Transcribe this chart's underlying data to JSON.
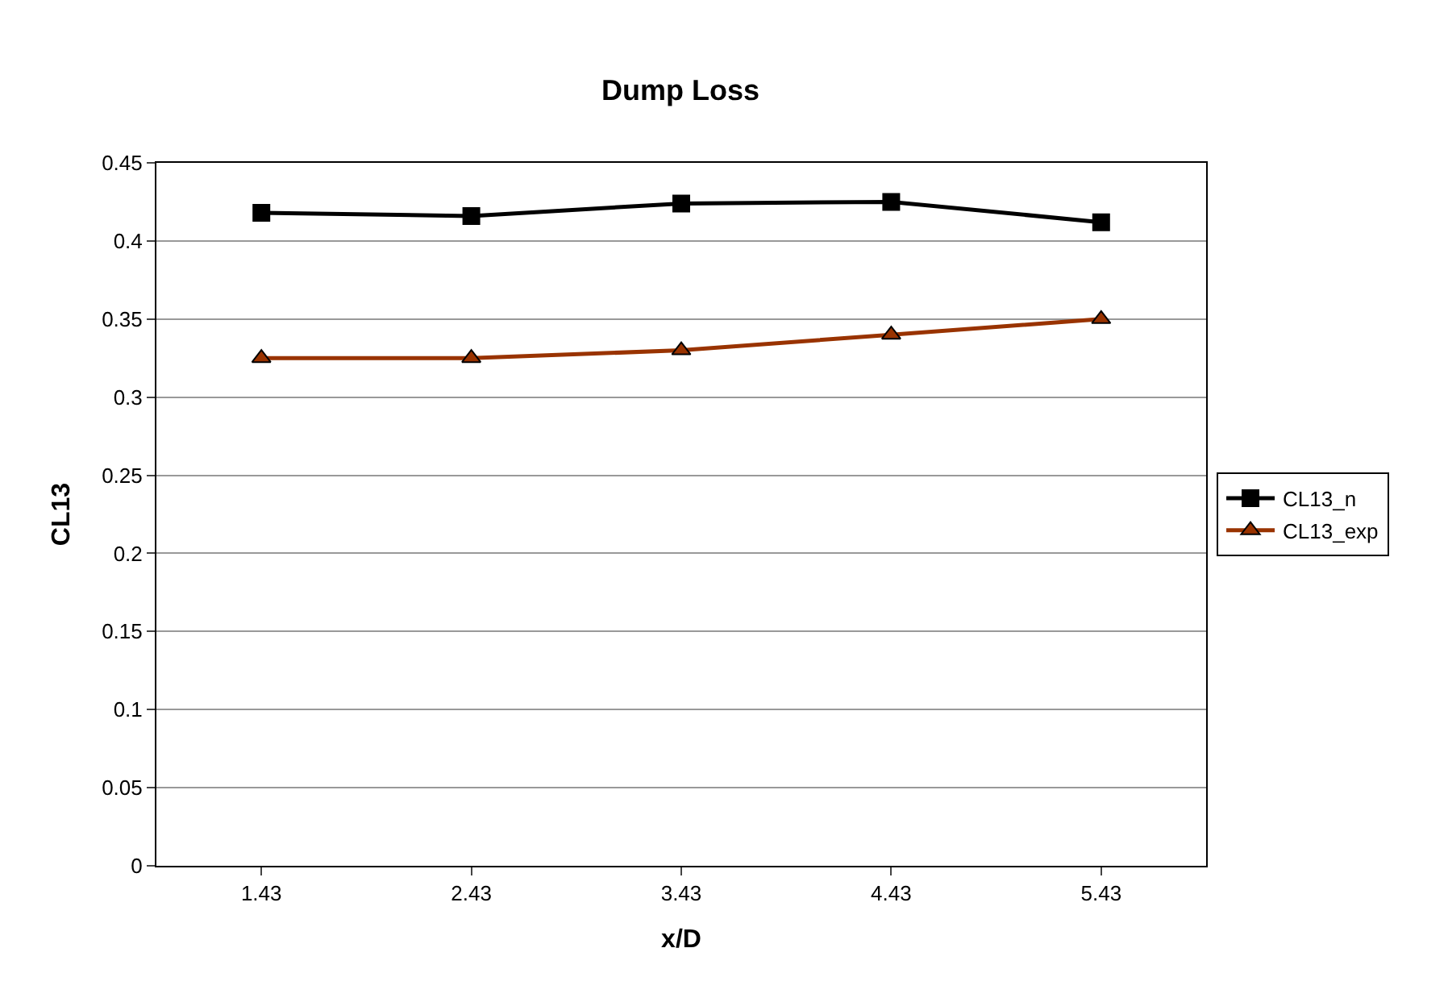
{
  "chart_data": {
    "type": "line",
    "title": "Dump Loss",
    "xlabel": "x/D",
    "ylabel": "CL13",
    "categories": [
      "1.43",
      "2.43",
      "3.43",
      "4.43",
      "5.43"
    ],
    "series": [
      {
        "name": "CL13_n",
        "color": "#000000",
        "marker": "square",
        "values": [
          0.418,
          0.416,
          0.424,
          0.425,
          0.412
        ]
      },
      {
        "name": "CL13_exp",
        "color": "#993300",
        "marker": "triangle",
        "values": [
          0.325,
          0.325,
          0.33,
          0.34,
          0.35
        ]
      }
    ],
    "ylim": [
      0,
      0.45
    ],
    "yticks": [
      0,
      0.05,
      0.1,
      0.15,
      0.2,
      0.25,
      0.3,
      0.35,
      0.4,
      0.45
    ],
    "grid": "y",
    "legend": "right",
    "line_style": "solid"
  }
}
